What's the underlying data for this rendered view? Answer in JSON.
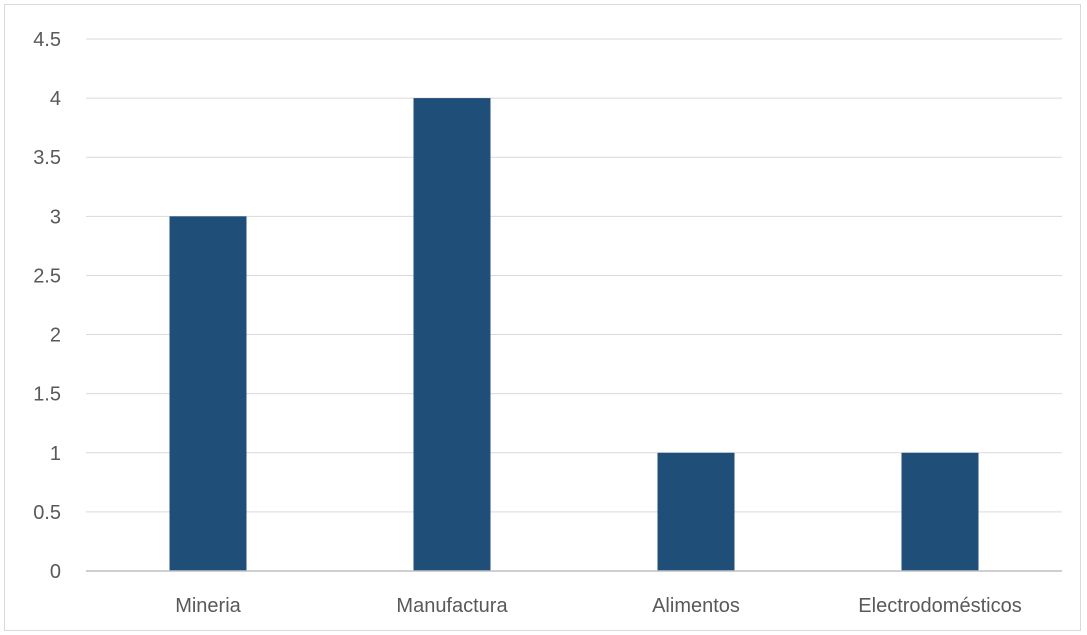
{
  "chart_data": {
    "type": "bar",
    "categories": [
      "Mineria",
      "Manufactura",
      "Alimentos",
      "Electrodomésticos"
    ],
    "values": [
      3,
      4,
      1,
      1
    ],
    "title": "",
    "xlabel": "",
    "ylabel": "",
    "ylim": [
      0,
      4.5
    ],
    "yticks": [
      "0",
      "0.5",
      "1",
      "1.5",
      "2",
      "2.5",
      "3",
      "3.5",
      "4",
      "4.5"
    ],
    "grid": true,
    "legend": "none",
    "colors": {
      "bar": "#1f4e79",
      "grid": "#d9d9d9",
      "axis": "#bfbfbf",
      "text": "#595959"
    }
  }
}
